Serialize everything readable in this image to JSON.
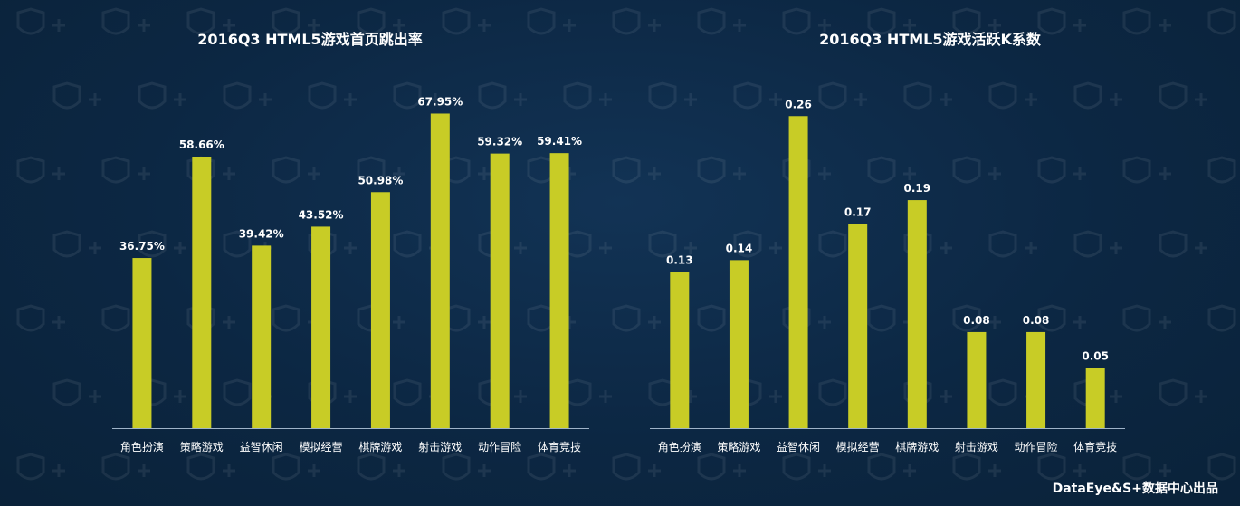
{
  "colors": {
    "background": "#0d2a45",
    "bar": "#c8cc26",
    "axis": "#9fb3c8",
    "text": "#ffffff"
  },
  "charts": [
    {
      "type": "bar",
      "title": "2016Q3 HTML5游戏首页跳出率",
      "categories": [
        "角色扮演",
        "策略游戏",
        "益智休闲",
        "模拟经营",
        "棋牌游戏",
        "射击游戏",
        "动作冒险",
        "体育竞技"
      ],
      "values": [
        36.75,
        58.66,
        39.42,
        43.52,
        50.98,
        67.95,
        59.32,
        59.41
      ],
      "labels": [
        "36.75%",
        "58.66%",
        "39.42%",
        "43.52%",
        "50.98%",
        "67.95%",
        "59.32%",
        "59.41%"
      ],
      "ylim": [
        0,
        70
      ]
    },
    {
      "type": "bar",
      "title": "2016Q3 HTML5游戏活跃K系数",
      "categories": [
        "角色扮演",
        "策略游戏",
        "益智休闲",
        "模拟经营",
        "棋牌游戏",
        "射击游戏",
        "动作冒险",
        "体育竞技"
      ],
      "values": [
        0.13,
        0.14,
        0.26,
        0.17,
        0.19,
        0.08,
        0.08,
        0.05
      ],
      "labels": [
        "0.13",
        "0.14",
        "0.26",
        "0.17",
        "0.19",
        "0.08",
        "0.08",
        "0.05"
      ],
      "ylim": [
        0,
        0.27
      ]
    }
  ],
  "footer": "DataEye&S+数据中心出品"
}
